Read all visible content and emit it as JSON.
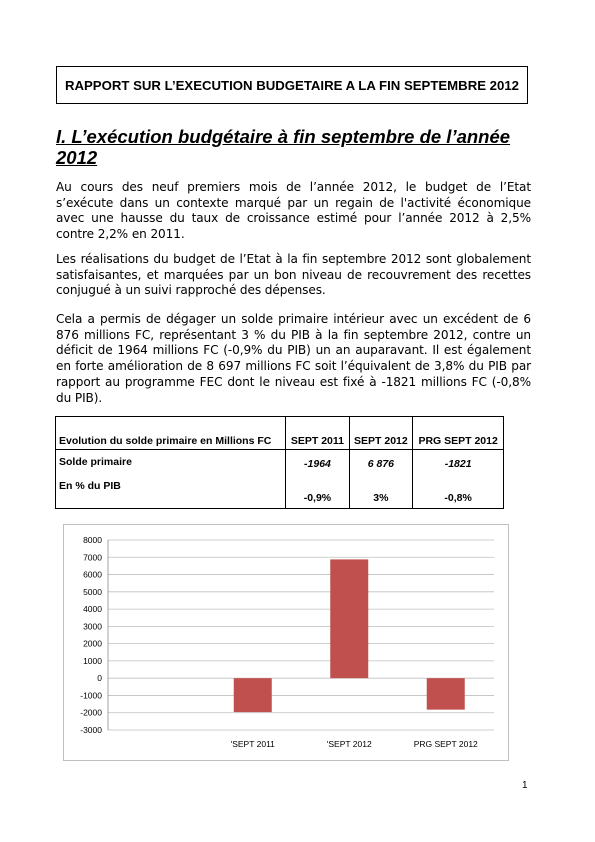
{
  "header": {
    "title": "RAPPORT SUR L’EXECUTION BUDGETAIRE A LA FIN SEPTEMBRE 2012"
  },
  "section": {
    "title": "I. L’exécution budgétaire à fin septembre de l’année 2012"
  },
  "paragraphs": [
    "Au cours des neuf premiers mois de l’année 2012, le budget de l’Etat s’exécute dans un contexte marqué par un regain de l'activité économique avec une hausse du taux de croissance estimé pour l’année 2012 à 2,5% contre 2,2% en 2011.",
    "Les réalisations du budget de l’Etat à la fin septembre 2012 sont globalement satisfaisantes, et marquées par un bon niveau de recouvrement des recettes conjugué à un suivi rapproché des dépenses.",
    "Cela a permis de dégager un solde primaire intérieur avec un excédent de 6 876 millions FC, représentant 3 % du PIB à la fin septembre 2012, contre un déficit de 1964 millions FC (-0,9% du PIB) un an auparavant. Il est également en forte amélioration de 8 697 millions FC soit l’équivalent de 3,8% du PIB par rapport au programme FEC dont le niveau est fixé à -1821 millions FC (-0,8% du PIB)."
  ],
  "table": {
    "headers": [
      "Evolution du solde primaire en Millions FC",
      "SEPT 2011",
      "SEPT 2012",
      "PRG SEPT 2012"
    ],
    "row_labels": [
      "Solde primaire",
      "En % du PIB"
    ],
    "solde": [
      "-1964",
      "6 876",
      "-1821"
    ],
    "pct": [
      "-0,9%",
      "3%",
      "-0,8%"
    ]
  },
  "chart_data": {
    "type": "bar",
    "categories": [
      "'SEPT 2011",
      "'SEPT 2012",
      "PRG SEPT 2012"
    ],
    "values": [
      -1964,
      6876,
      -1821
    ],
    "ylim": [
      -3000,
      8000
    ],
    "yticks": [
      "8000",
      "7000",
      "6000",
      "5000",
      "4000",
      "3000",
      "2000",
      "1000",
      "0",
      "-1000",
      "-2000",
      "-3000"
    ],
    "bar_color": "#c0504d",
    "grid": true,
    "title": "",
    "xlabel": "",
    "ylabel": ""
  },
  "footer": {
    "page_number": "1"
  }
}
